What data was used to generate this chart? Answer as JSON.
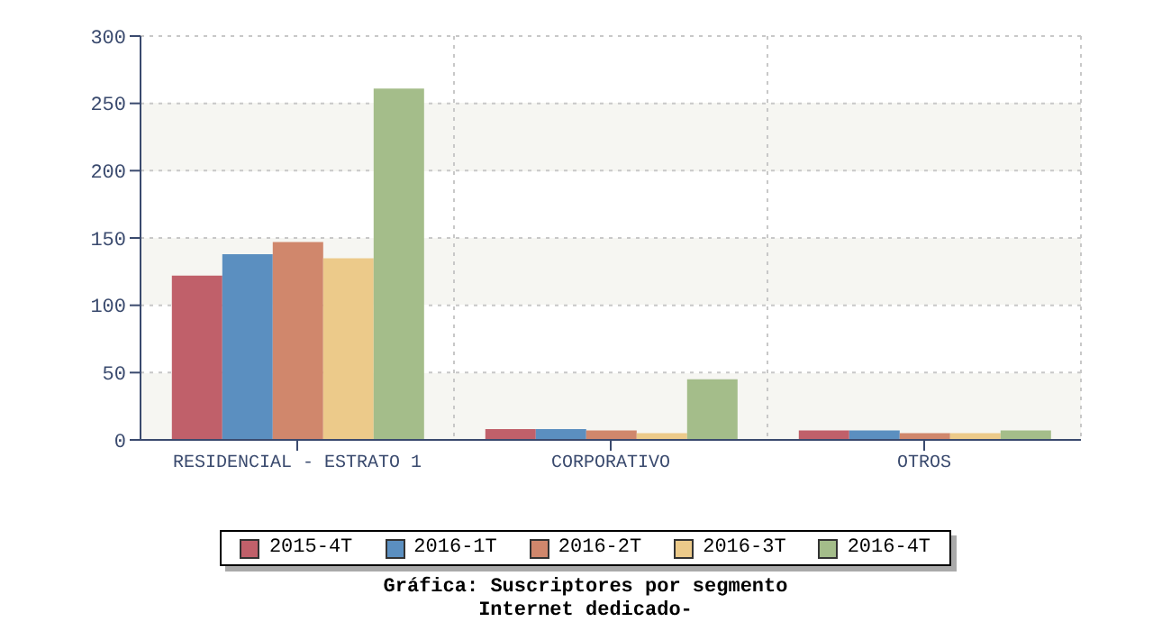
{
  "chart_data": {
    "type": "bar",
    "title": "Gráfica: Suscriptores por segmento",
    "subtitle": "Internet dedicado-",
    "categories": [
      "RESIDENCIAL - ESTRATO 1",
      "CORPORATIVO",
      "OTROS"
    ],
    "series": [
      {
        "name": "2015-4T",
        "color": "#c0606a",
        "values": [
          122,
          8,
          7
        ]
      },
      {
        "name": "2016-1T",
        "color": "#5b8fc0",
        "values": [
          138,
          8,
          7
        ]
      },
      {
        "name": "2016-2T",
        "color": "#d0876c",
        "values": [
          147,
          7,
          5
        ]
      },
      {
        "name": "2016-3T",
        "color": "#ecca8a",
        "values": [
          135,
          5,
          5
        ]
      },
      {
        "name": "2016-4T",
        "color": "#a4bd8a",
        "values": [
          261,
          45,
          7
        ]
      }
    ],
    "ylim": [
      0,
      300
    ],
    "yticks": [
      0,
      50,
      100,
      150,
      200,
      250,
      300
    ],
    "grid": true,
    "legend": "bottom"
  }
}
